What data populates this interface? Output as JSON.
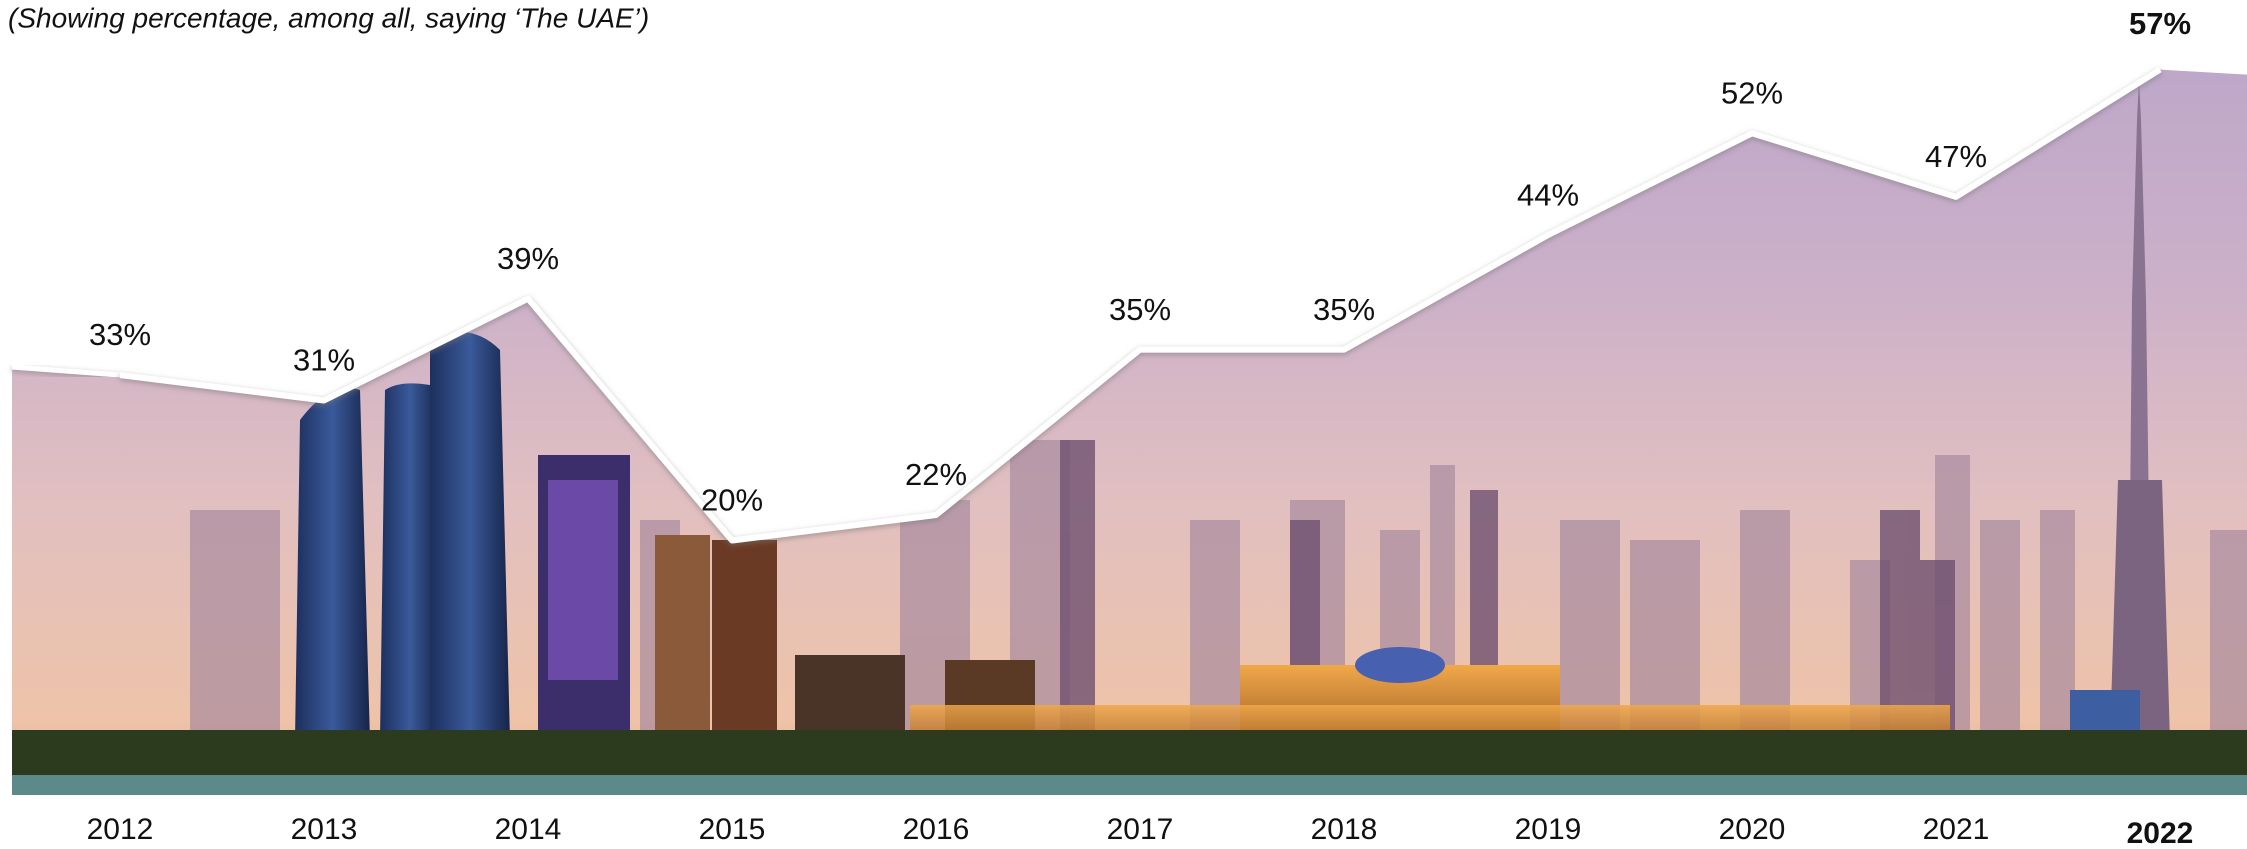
{
  "chart_data": {
    "type": "line",
    "subtitle": "(Showing percentage, among all, saying ‘The UAE’)",
    "categories": [
      "2012",
      "2013",
      "2014",
      "2015",
      "2016",
      "2017",
      "2018",
      "2019",
      "2020",
      "2021",
      "2022"
    ],
    "values": [
      33,
      31,
      39,
      20,
      22,
      35,
      35,
      44,
      52,
      47,
      57
    ],
    "value_labels": [
      "33%",
      "31%",
      "39%",
      "20%",
      "22%",
      "35%",
      "35%",
      "44%",
      "52%",
      "47%",
      "57%"
    ],
    "color": "#ffffff",
    "ylim": [
      0,
      62
    ]
  }
}
